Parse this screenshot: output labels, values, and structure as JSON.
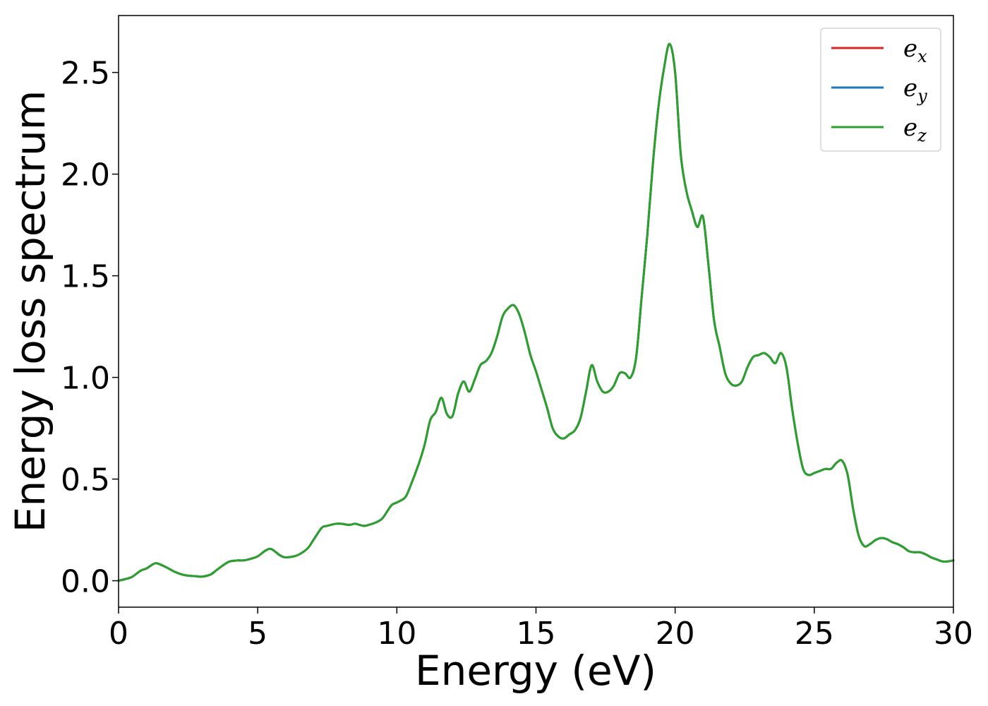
{
  "chart_data": {
    "type": "line",
    "title": "",
    "xlabel": "Energy (eV)",
    "ylabel": "Energy loss spectrum",
    "xlim": [
      0,
      30
    ],
    "ylim": [
      -0.13,
      2.78
    ],
    "xticks": [
      0,
      5,
      10,
      15,
      20,
      25,
      30
    ],
    "xtick_labels": [
      "0",
      "5",
      "10",
      "15",
      "20",
      "25",
      "30"
    ],
    "yticks": [
      0.0,
      0.5,
      1.0,
      1.5,
      2.0,
      2.5
    ],
    "ytick_labels": [
      "0.0",
      "0.5",
      "1.0",
      "1.5",
      "2.0",
      "2.5"
    ],
    "grid": false,
    "legend": {
      "position": "top-right"
    },
    "x": [
      0,
      0.3,
      0.5,
      0.8,
      1.0,
      1.3,
      1.5,
      1.8,
      2.0,
      2.3,
      2.5,
      2.8,
      3.0,
      3.3,
      3.5,
      3.8,
      4.0,
      4.3,
      4.5,
      4.8,
      5.0,
      5.3,
      5.5,
      5.8,
      6.0,
      6.3,
      6.5,
      6.8,
      7.0,
      7.3,
      7.5,
      7.8,
      8.0,
      8.3,
      8.5,
      8.8,
      9.0,
      9.3,
      9.5,
      9.8,
      10.0,
      10.3,
      10.5,
      10.8,
      11.0,
      11.2,
      11.4,
      11.6,
      11.8,
      12.0,
      12.2,
      12.4,
      12.6,
      12.8,
      13.0,
      13.2,
      13.4,
      13.6,
      13.8,
      14.0,
      14.2,
      14.4,
      14.6,
      14.8,
      15.0,
      15.2,
      15.4,
      15.6,
      15.8,
      16.0,
      16.2,
      16.4,
      16.6,
      16.8,
      17.0,
      17.2,
      17.4,
      17.6,
      17.8,
      18.0,
      18.2,
      18.4,
      18.6,
      18.8,
      19.0,
      19.2,
      19.4,
      19.6,
      19.8,
      20.0,
      20.2,
      20.4,
      20.6,
      20.8,
      21.0,
      21.2,
      21.4,
      21.6,
      21.8,
      22.0,
      22.2,
      22.4,
      22.6,
      22.8,
      23.0,
      23.2,
      23.4,
      23.6,
      23.8,
      24.0,
      24.2,
      24.4,
      24.6,
      24.8,
      25.0,
      25.2,
      25.4,
      25.6,
      25.8,
      26.0,
      26.2,
      26.4,
      26.6,
      26.8,
      27.0,
      27.2,
      27.4,
      27.6,
      27.8,
      28.0,
      28.2,
      28.4,
      28.6,
      28.8,
      29.0,
      29.2,
      29.4,
      29.6,
      29.8,
      30.0
    ],
    "series": [
      {
        "name": "e_x",
        "color": "#d62728",
        "values": [
          0.0,
          0.01,
          0.02,
          0.05,
          0.06,
          0.085,
          0.08,
          0.06,
          0.045,
          0.03,
          0.025,
          0.022,
          0.02,
          0.03,
          0.05,
          0.08,
          0.095,
          0.1,
          0.1,
          0.11,
          0.12,
          0.15,
          0.155,
          0.125,
          0.115,
          0.12,
          0.13,
          0.16,
          0.2,
          0.26,
          0.27,
          0.28,
          0.28,
          0.275,
          0.28,
          0.27,
          0.275,
          0.29,
          0.31,
          0.37,
          0.385,
          0.41,
          0.47,
          0.58,
          0.67,
          0.79,
          0.83,
          0.9,
          0.82,
          0.81,
          0.92,
          0.98,
          0.93,
          0.99,
          1.06,
          1.08,
          1.12,
          1.2,
          1.3,
          1.34,
          1.355,
          1.31,
          1.22,
          1.11,
          1.03,
          0.94,
          0.85,
          0.75,
          0.71,
          0.7,
          0.72,
          0.74,
          0.8,
          0.93,
          1.06,
          0.98,
          0.93,
          0.93,
          0.96,
          1.02,
          1.02,
          1.0,
          1.1,
          1.4,
          1.7,
          2.05,
          2.33,
          2.52,
          2.64,
          2.5,
          2.1,
          1.92,
          1.82,
          1.74,
          1.79,
          1.55,
          1.28,
          1.15,
          1.02,
          0.97,
          0.96,
          0.98,
          1.05,
          1.1,
          1.11,
          1.12,
          1.1,
          1.07,
          1.12,
          1.05,
          0.85,
          0.68,
          0.55,
          0.52,
          0.53,
          0.54,
          0.55,
          0.55,
          0.58,
          0.59,
          0.52,
          0.35,
          0.22,
          0.17,
          0.18,
          0.2,
          0.21,
          0.205,
          0.19,
          0.18,
          0.165,
          0.145,
          0.14,
          0.14,
          0.13,
          0.115,
          0.105,
          0.095,
          0.095,
          0.1
        ]
      },
      {
        "name": "e_y",
        "color": "#1f77b4",
        "values": [
          0.0,
          0.01,
          0.02,
          0.05,
          0.06,
          0.085,
          0.08,
          0.06,
          0.045,
          0.03,
          0.025,
          0.022,
          0.02,
          0.03,
          0.05,
          0.08,
          0.095,
          0.1,
          0.1,
          0.11,
          0.12,
          0.15,
          0.155,
          0.125,
          0.115,
          0.12,
          0.13,
          0.16,
          0.2,
          0.26,
          0.27,
          0.28,
          0.28,
          0.275,
          0.28,
          0.27,
          0.275,
          0.29,
          0.31,
          0.37,
          0.385,
          0.41,
          0.47,
          0.58,
          0.67,
          0.79,
          0.83,
          0.9,
          0.82,
          0.81,
          0.92,
          0.98,
          0.93,
          0.99,
          1.06,
          1.08,
          1.12,
          1.2,
          1.3,
          1.34,
          1.355,
          1.31,
          1.22,
          1.11,
          1.03,
          0.94,
          0.85,
          0.75,
          0.71,
          0.7,
          0.72,
          0.74,
          0.8,
          0.93,
          1.06,
          0.98,
          0.93,
          0.93,
          0.96,
          1.02,
          1.02,
          1.0,
          1.1,
          1.4,
          1.7,
          2.05,
          2.33,
          2.52,
          2.64,
          2.5,
          2.1,
          1.92,
          1.82,
          1.74,
          1.79,
          1.55,
          1.28,
          1.15,
          1.02,
          0.97,
          0.96,
          0.98,
          1.05,
          1.1,
          1.11,
          1.12,
          1.1,
          1.07,
          1.12,
          1.05,
          0.85,
          0.68,
          0.55,
          0.52,
          0.53,
          0.54,
          0.55,
          0.55,
          0.58,
          0.59,
          0.52,
          0.35,
          0.22,
          0.17,
          0.18,
          0.2,
          0.21,
          0.205,
          0.19,
          0.18,
          0.165,
          0.145,
          0.14,
          0.14,
          0.13,
          0.115,
          0.105,
          0.095,
          0.095,
          0.1
        ]
      },
      {
        "name": "e_z",
        "color": "#2ca02c",
        "values": [
          0.0,
          0.01,
          0.02,
          0.05,
          0.06,
          0.085,
          0.08,
          0.06,
          0.045,
          0.03,
          0.025,
          0.022,
          0.02,
          0.03,
          0.05,
          0.08,
          0.095,
          0.1,
          0.1,
          0.11,
          0.12,
          0.15,
          0.155,
          0.125,
          0.115,
          0.12,
          0.13,
          0.16,
          0.2,
          0.26,
          0.27,
          0.28,
          0.28,
          0.275,
          0.28,
          0.27,
          0.275,
          0.29,
          0.31,
          0.37,
          0.385,
          0.41,
          0.47,
          0.58,
          0.67,
          0.79,
          0.83,
          0.9,
          0.82,
          0.81,
          0.92,
          0.98,
          0.93,
          0.99,
          1.06,
          1.08,
          1.12,
          1.2,
          1.3,
          1.34,
          1.355,
          1.31,
          1.22,
          1.11,
          1.03,
          0.94,
          0.85,
          0.75,
          0.71,
          0.7,
          0.72,
          0.74,
          0.8,
          0.93,
          1.06,
          0.98,
          0.93,
          0.93,
          0.96,
          1.02,
          1.02,
          1.0,
          1.1,
          1.4,
          1.7,
          2.05,
          2.33,
          2.52,
          2.64,
          2.5,
          2.1,
          1.92,
          1.82,
          1.74,
          1.79,
          1.55,
          1.28,
          1.15,
          1.02,
          0.97,
          0.96,
          0.98,
          1.05,
          1.1,
          1.11,
          1.12,
          1.1,
          1.07,
          1.12,
          1.05,
          0.85,
          0.68,
          0.55,
          0.52,
          0.53,
          0.54,
          0.55,
          0.55,
          0.58,
          0.59,
          0.52,
          0.35,
          0.22,
          0.17,
          0.18,
          0.2,
          0.21,
          0.205,
          0.19,
          0.18,
          0.165,
          0.145,
          0.14,
          0.14,
          0.13,
          0.115,
          0.105,
          0.095,
          0.095,
          0.1
        ]
      }
    ],
    "legend_entries": [
      {
        "base": "e",
        "sub": "x",
        "color": "#d62728"
      },
      {
        "base": "e",
        "sub": "y",
        "color": "#1f77b4"
      },
      {
        "base": "e",
        "sub": "z",
        "color": "#2ca02c"
      }
    ]
  }
}
